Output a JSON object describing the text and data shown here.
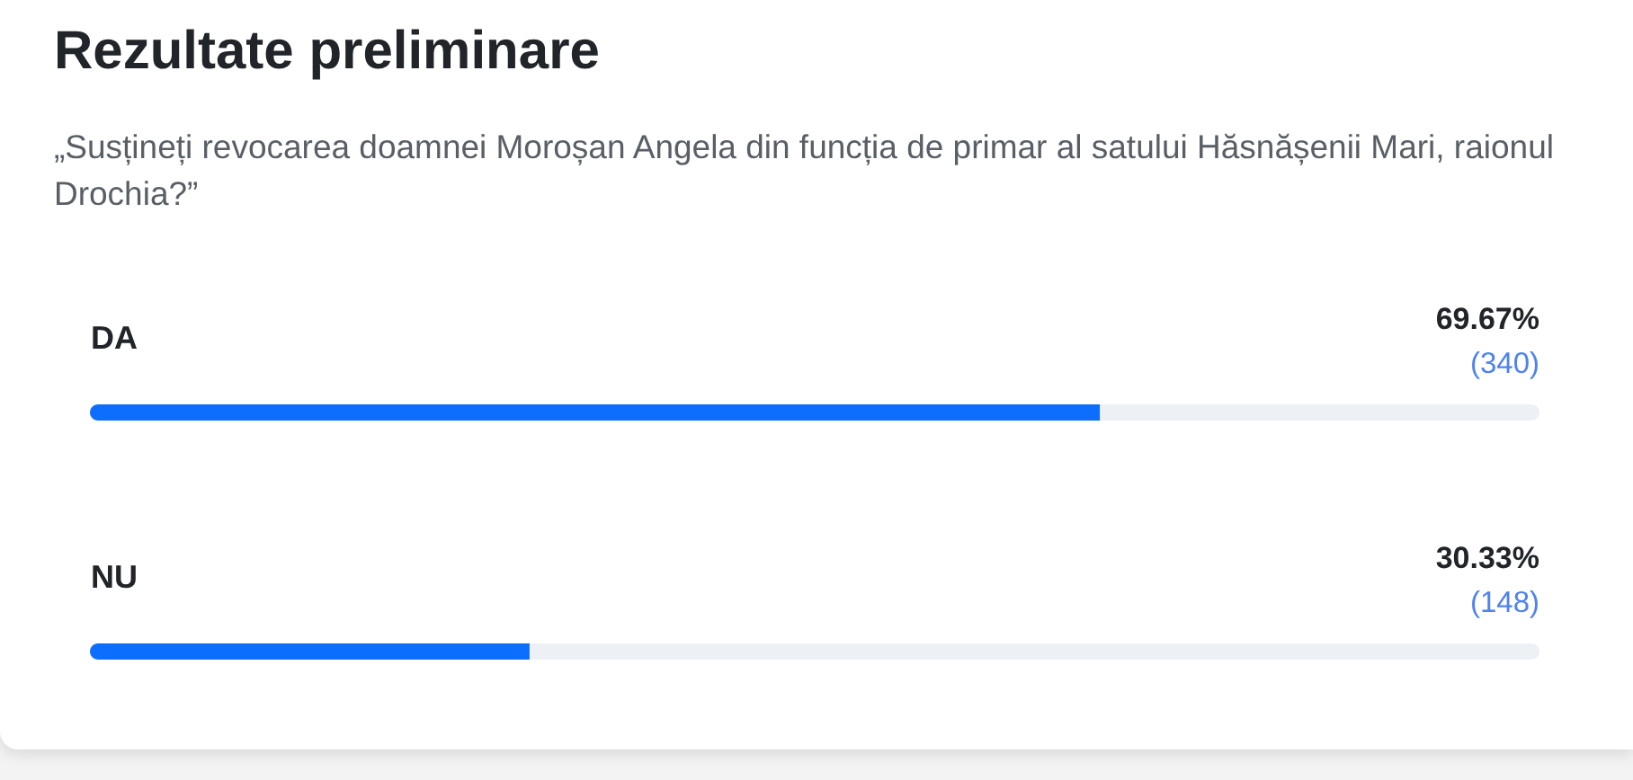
{
  "chart_data": {
    "type": "bar",
    "orientation": "horizontal",
    "title": "Rezultate preliminare",
    "subtitle": "„Susțineți revocarea doamnei Moroșan Angela din funcția de primar al satului Hăsnășenii Mari, raionul Drochia?”",
    "categories": [
      "DA",
      "NU"
    ],
    "values": [
      69.67,
      30.33
    ],
    "value_labels": [
      "69.67%",
      "30.33%"
    ],
    "color": "#0d6efd",
    "xlim": [
      0,
      100
    ],
    "tick_labels": "y",
    "annotations": [
      "(340)",
      "(148)"
    ]
  }
}
